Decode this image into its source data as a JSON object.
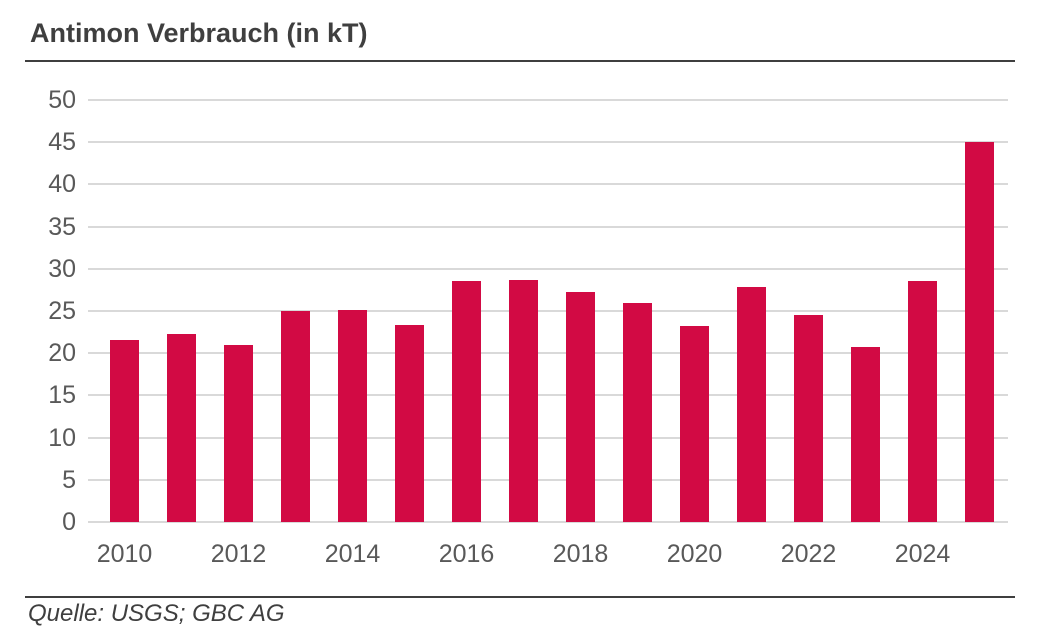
{
  "header": {
    "title": "Antimon Verbrauch (in kT)"
  },
  "footer": {
    "source": "Quelle: USGS; GBC AG"
  },
  "colors": {
    "bar": "#d20a44",
    "gridline": "#d9d9d9",
    "axis_text": "#595959",
    "heading_text": "#3f3f3f",
    "rule": "#3f3f3f",
    "background": "#ffffff"
  },
  "chart_data": {
    "type": "bar",
    "title": "Antimon Verbrauch (in kT)",
    "categories": [
      "2010",
      "2011",
      "2012",
      "2013",
      "2014",
      "2015",
      "2016",
      "2017",
      "2018",
      "2019",
      "2020",
      "2021",
      "2022",
      "2023",
      "2024",
      "2025"
    ],
    "values": [
      21.6,
      22.3,
      21.0,
      25.0,
      25.1,
      23.4,
      28.5,
      28.7,
      27.3,
      25.9,
      23.2,
      27.8,
      24.5,
      20.7,
      28.6,
      45.0
    ],
    "xlabel": "",
    "ylabel": "",
    "ylim": [
      0,
      50
    ],
    "ytick_step": 5,
    "ytick_labels": [
      "0",
      "5",
      "10",
      "15",
      "20",
      "25",
      "30",
      "35",
      "40",
      "45",
      "50"
    ],
    "x_labels_shown": [
      "2010",
      "2012",
      "2014",
      "2016",
      "2018",
      "2020",
      "2022",
      "2024"
    ],
    "grid": "horizontal",
    "legend": "none",
    "bar_color": "#d20a44",
    "source": "Quelle: USGS; GBC AG"
  }
}
